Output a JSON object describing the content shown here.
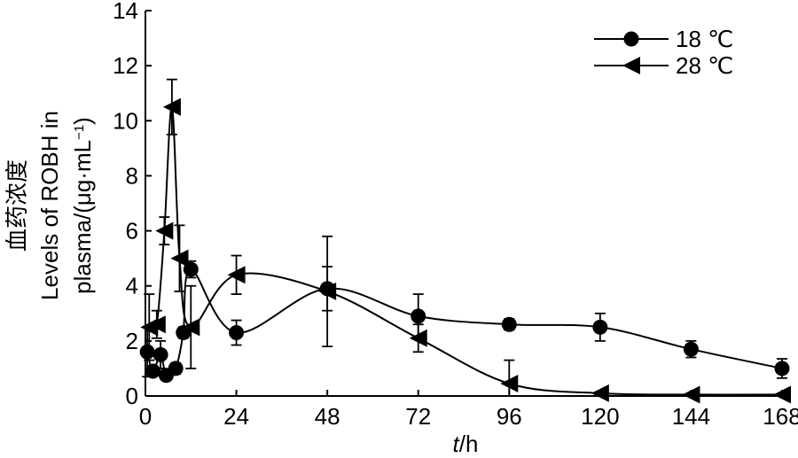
{
  "chart_data": {
    "type": "scatter",
    "xlabel_italic": "t",
    "xlabel_unit": "/h",
    "ylabel_lines": [
      "血药浓度",
      "Levels of ROBH in",
      "plasma/(μg·mL",
      "−1",
      ")"
    ],
    "xlim": [
      0,
      168
    ],
    "ylim": [
      0,
      14
    ],
    "xticks": [
      0,
      24,
      48,
      72,
      96,
      120,
      144,
      168
    ],
    "yticks": [
      0,
      2,
      4,
      6,
      8,
      10,
      12,
      14
    ],
    "legend_position": "top-right",
    "series": [
      {
        "name": "18 ℃",
        "marker": "circle",
        "points": [
          {
            "x": 0.5,
            "y": 1.6,
            "err": 0.9
          },
          {
            "x": 2,
            "y": 0.9,
            "err": 0.15
          },
          {
            "x": 4,
            "y": 1.5,
            "err": 0.5
          },
          {
            "x": 5.5,
            "y": 0.75,
            "err": 0.15
          },
          {
            "x": 8,
            "y": 1.0,
            "err": 0.2
          },
          {
            "x": 10,
            "y": 2.3,
            "err": 0.2
          },
          {
            "x": 12,
            "y": 4.6,
            "err": 0.3
          },
          {
            "x": 24,
            "y": 2.3,
            "err": 0.45
          },
          {
            "x": 48,
            "y": 3.9,
            "err": 0.8
          },
          {
            "x": 72,
            "y": 2.9,
            "err": 0.8
          },
          {
            "x": 96,
            "y": 2.6,
            "err": 0.2
          },
          {
            "x": 120,
            "y": 2.5,
            "err": 0.5
          },
          {
            "x": 144,
            "y": 1.7,
            "err": 0.3
          },
          {
            "x": 168,
            "y": 1.0,
            "err": 0.35
          }
        ]
      },
      {
        "name": "28 ℃",
        "marker": "triangle-left",
        "points": [
          {
            "x": 1,
            "y": 2.5,
            "err": 1.2
          },
          {
            "x": 3,
            "y": 2.6,
            "err": 0.5
          },
          {
            "x": 5,
            "y": 6.0,
            "err": 0.5
          },
          {
            "x": 7,
            "y": 10.5,
            "err": 1.0
          },
          {
            "x": 9,
            "y": 5.0,
            "err": 1.2
          },
          {
            "x": 12,
            "y": 2.5,
            "err": 1.5
          },
          {
            "x": 24,
            "y": 4.4,
            "err": 0.7
          },
          {
            "x": 48,
            "y": 3.8,
            "err": 2.0
          },
          {
            "x": 72,
            "y": 2.1,
            "err": 0.5
          },
          {
            "x": 96,
            "y": 0.45,
            "err": 0.85
          },
          {
            "x": 120,
            "y": 0.1,
            "err": 0
          },
          {
            "x": 144,
            "y": 0.05,
            "err": 0
          },
          {
            "x": 168,
            "y": 0.05,
            "err": 0
          }
        ]
      }
    ]
  }
}
